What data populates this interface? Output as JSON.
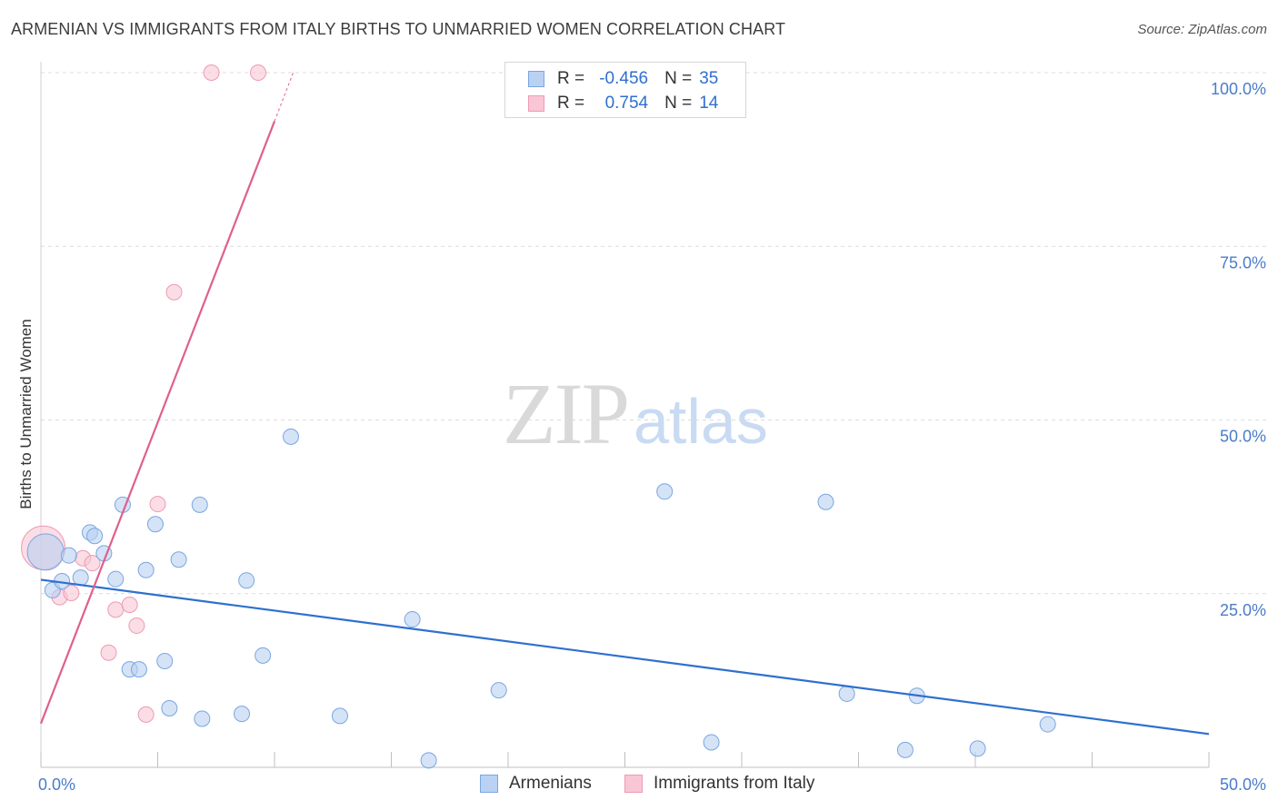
{
  "title": "ARMENIAN VS IMMIGRANTS FROM ITALY BIRTHS TO UNMARRIED WOMEN CORRELATION CHART",
  "source": "Source: ZipAtlas.com",
  "watermark": {
    "zip": "ZIP",
    "atlas": "atlas"
  },
  "legend": {
    "armenians": {
      "r_label": "R =",
      "r_value": "-0.456",
      "n_label": "N =",
      "n_value": "35"
    },
    "italy": {
      "r_label": "R =",
      "r_value": "0.754",
      "n_label": "N =",
      "n_value": "14"
    }
  },
  "bottom_legend": {
    "armenians": "Armenians",
    "italy": "Immigrants from Italy"
  },
  "colors": {
    "armenians_fill": "#b9d1f2",
    "armenians_stroke": "#7aa6e0",
    "armenians_line": "#2f6fcf",
    "italy_fill": "#f9c6d5",
    "italy_stroke": "#ee9ab2",
    "italy_line": "#e0608a",
    "grid": "#dcdcdc",
    "tick_text": "#4a7cc9"
  },
  "chart_data": {
    "type": "scatter",
    "title": "ARMENIAN VS IMMIGRANTS FROM ITALY BIRTHS TO UNMARRIED WOMEN CORRELATION CHART",
    "xlabel": "",
    "ylabel": "Births to Unmarried Women",
    "xlim": [
      0,
      50
    ],
    "ylim": [
      0,
      100
    ],
    "x_tick_labels": [
      "0.0%",
      "50.0%"
    ],
    "y_ticks": [
      25,
      50,
      75,
      100
    ],
    "y_tick_labels": [
      "25.0%",
      "50.0%",
      "75.0%",
      "100.0%"
    ],
    "grid": true,
    "legend_position": "top-center",
    "series": [
      {
        "name": "Armenians",
        "r": -0.456,
        "n": 35,
        "points": [
          [
            0.2,
            31.0
          ],
          [
            0.5,
            25.5
          ],
          [
            0.9,
            26.8
          ],
          [
            1.2,
            30.5
          ],
          [
            1.7,
            27.3
          ],
          [
            2.1,
            33.8
          ],
          [
            2.3,
            33.3
          ],
          [
            2.7,
            30.8
          ],
          [
            3.2,
            27.1
          ],
          [
            3.5,
            37.8
          ],
          [
            3.8,
            14.1
          ],
          [
            4.2,
            14.1
          ],
          [
            4.5,
            28.4
          ],
          [
            4.9,
            35.0
          ],
          [
            5.3,
            15.3
          ],
          [
            5.5,
            8.5
          ],
          [
            5.9,
            29.9
          ],
          [
            6.8,
            37.8
          ],
          [
            6.9,
            7.0
          ],
          [
            8.6,
            7.7
          ],
          [
            8.8,
            26.9
          ],
          [
            9.5,
            16.1
          ],
          [
            10.7,
            47.6
          ],
          [
            12.8,
            7.4
          ],
          [
            15.9,
            21.3
          ],
          [
            16.6,
            1.0
          ],
          [
            19.6,
            11.1
          ],
          [
            26.7,
            39.7
          ],
          [
            28.7,
            3.6
          ],
          [
            33.6,
            38.2
          ],
          [
            34.5,
            10.6
          ],
          [
            37.0,
            2.5
          ],
          [
            37.5,
            10.3
          ],
          [
            40.1,
            2.7
          ],
          [
            43.1,
            6.2
          ]
        ],
        "trend": {
          "x": [
            0,
            50
          ],
          "y": [
            27.0,
            4.8
          ]
        }
      },
      {
        "name": "Immigrants from Italy",
        "r": 0.754,
        "n": 14,
        "points": [
          [
            0.1,
            31.6
          ],
          [
            0.8,
            24.5
          ],
          [
            1.3,
            25.1
          ],
          [
            1.8,
            30.1
          ],
          [
            2.2,
            29.4
          ],
          [
            2.9,
            16.5
          ],
          [
            3.2,
            22.7
          ],
          [
            3.8,
            23.4
          ],
          [
            4.1,
            20.4
          ],
          [
            4.5,
            7.6
          ],
          [
            5.0,
            37.9
          ],
          [
            5.7,
            68.4
          ],
          [
            7.3,
            100.0
          ],
          [
            9.3,
            100.0
          ]
        ],
        "trend": {
          "x": [
            0,
            10.0
          ],
          "y": [
            6.3,
            93.0
          ]
        },
        "trend_dashed_extension": {
          "x": [
            10.0,
            10.8
          ],
          "y": [
            93.0,
            100.0
          ]
        }
      }
    ]
  }
}
